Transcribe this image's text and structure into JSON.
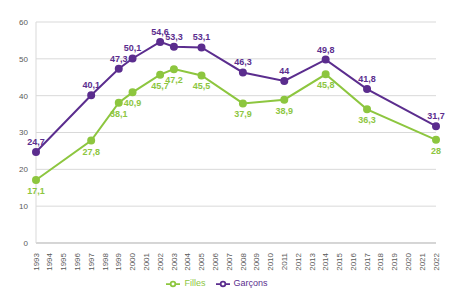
{
  "chart_data": {
    "type": "line",
    "categories": [
      "1993",
      "1994",
      "1995",
      "1996",
      "1997",
      "1998",
      "1999",
      "2000",
      "2001",
      "2002",
      "2003",
      "2004",
      "2005",
      "2006",
      "2007",
      "2008",
      "2009",
      "2010",
      "2011",
      "2012",
      "2013",
      "2014",
      "2015",
      "2016",
      "2017",
      "2018",
      "2019",
      "2020",
      "2021",
      "2022"
    ],
    "series": [
      {
        "name": "Garçons",
        "color": "#5b2d8e",
        "marker": "circle",
        "values": [
          24.7,
          null,
          null,
          null,
          40.1,
          null,
          47.3,
          50.1,
          null,
          54.6,
          53.3,
          null,
          53.1,
          null,
          null,
          46.3,
          null,
          null,
          44,
          null,
          null,
          49.8,
          null,
          null,
          41.8,
          null,
          null,
          null,
          null,
          31.7
        ],
        "value_labels": [
          "24,7",
          null,
          null,
          null,
          "40,1",
          null,
          "47,3",
          "50,1",
          null,
          "54,6",
          "53,3",
          null,
          "53,1",
          null,
          null,
          "46,3",
          null,
          null,
          "44",
          null,
          null,
          "49,8",
          null,
          null,
          "41,8",
          null,
          null,
          null,
          null,
          "31,7"
        ]
      },
      {
        "name": "Filles",
        "color": "#8dc63f",
        "marker": "circle",
        "values": [
          17.1,
          null,
          null,
          null,
          27.8,
          null,
          38.1,
          40.9,
          null,
          45.7,
          47.2,
          null,
          45.5,
          null,
          null,
          37.9,
          null,
          null,
          38.9,
          null,
          null,
          45.8,
          null,
          null,
          36.3,
          null,
          null,
          null,
          null,
          28
        ],
        "value_labels": [
          "17,1",
          null,
          null,
          null,
          "27,8",
          null,
          "38,1",
          "40,9",
          null,
          "45,7",
          "47,2",
          null,
          "45,5",
          null,
          null,
          "37,9",
          null,
          null,
          "38,9",
          null,
          null,
          "45,8",
          null,
          null,
          "36,3",
          null,
          null,
          null,
          null,
          "28"
        ]
      }
    ],
    "ylim": [
      0,
      60
    ],
    "yticks": [
      0,
      10,
      20,
      30,
      40,
      50,
      60
    ],
    "grid": true,
    "legend": "bottom",
    "data_labels": true
  }
}
